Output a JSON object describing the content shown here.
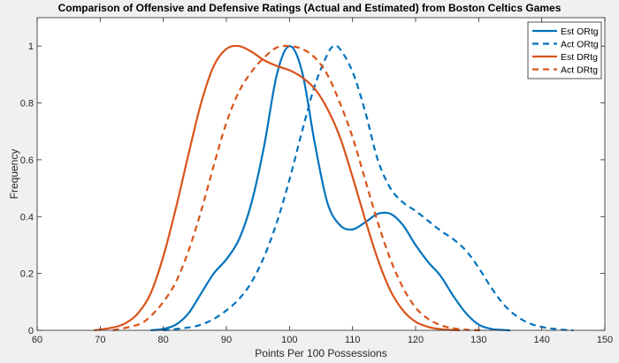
{
  "chart_data": {
    "type": "line",
    "title": "Comparison of Offensive and Defensive Ratings (Actual and Estimated) from Boston Celtics Games",
    "xlabel": "Points Per 100 Possessions",
    "ylabel": "Frequency",
    "xlim": [
      60,
      150
    ],
    "ylim": [
      0,
      1.1
    ],
    "xticks": [
      60,
      70,
      80,
      90,
      100,
      110,
      120,
      130,
      140,
      150
    ],
    "yticks": [
      0,
      0.2,
      0.4,
      0.6,
      0.8,
      1
    ],
    "ytick_labels": [
      "0",
      "0.2",
      "0.4",
      "0.6",
      "0.8",
      "1"
    ],
    "grid": false,
    "legend_position": "top-right",
    "series": [
      {
        "name": "Est ORtg",
        "color": "#0072BD",
        "style": "solid",
        "x": [
          78,
          80,
          82,
          84,
          86,
          88,
          90,
          92,
          94,
          96,
          98,
          100,
          102,
          104,
          106,
          108,
          110,
          112,
          114,
          116,
          118,
          120,
          122,
          124,
          126,
          128,
          130,
          132,
          134,
          135
        ],
        "y": [
          0,
          0.005,
          0.02,
          0.06,
          0.13,
          0.2,
          0.25,
          0.32,
          0.45,
          0.65,
          0.9,
          1.0,
          0.91,
          0.66,
          0.45,
          0.37,
          0.355,
          0.38,
          0.41,
          0.41,
          0.37,
          0.3,
          0.24,
          0.19,
          0.12,
          0.06,
          0.02,
          0.005,
          0.001,
          0
        ]
      },
      {
        "name": "Act ORtg",
        "color": "#0072BD",
        "style": "dashed",
        "x": [
          80,
          84,
          86,
          88,
          90,
          92,
          94,
          96,
          98,
          100,
          102,
          104,
          106,
          107,
          108,
          110,
          112,
          114,
          116,
          118,
          120,
          122,
          124,
          126,
          128,
          130,
          132,
          134,
          136,
          138,
          140,
          142,
          144,
          145
        ],
        "y": [
          0,
          0.01,
          0.02,
          0.04,
          0.07,
          0.11,
          0.17,
          0.26,
          0.38,
          0.53,
          0.7,
          0.86,
          0.97,
          1.0,
          0.99,
          0.91,
          0.77,
          0.6,
          0.5,
          0.45,
          0.42,
          0.385,
          0.35,
          0.32,
          0.28,
          0.22,
          0.15,
          0.09,
          0.05,
          0.025,
          0.012,
          0.005,
          0.001,
          0
        ]
      },
      {
        "name": "Est DRtg",
        "color": "#D95319",
        "style": "solid",
        "x": [
          69,
          72,
          74,
          76,
          78,
          80,
          82,
          84,
          86,
          88,
          90,
          92,
          94,
          96,
          98,
          100,
          102,
          104,
          106,
          108,
          110,
          112,
          114,
          116,
          118,
          120,
          122,
          124,
          126,
          127
        ],
        "y": [
          0,
          0.01,
          0.025,
          0.06,
          0.13,
          0.26,
          0.43,
          0.62,
          0.8,
          0.93,
          0.99,
          1.0,
          0.98,
          0.95,
          0.93,
          0.915,
          0.89,
          0.85,
          0.78,
          0.68,
          0.54,
          0.39,
          0.25,
          0.14,
          0.07,
          0.03,
          0.012,
          0.004,
          0.001,
          0
        ]
      },
      {
        "name": "Act DRtg",
        "color": "#D95319",
        "style": "dashed",
        "x": [
          72,
          76,
          78,
          80,
          82,
          84,
          86,
          88,
          90,
          92,
          94,
          96,
          98,
          100,
          102,
          104,
          106,
          108,
          110,
          112,
          114,
          116,
          118,
          120,
          122,
          124,
          126,
          128,
          130,
          131
        ],
        "y": [
          0,
          0.02,
          0.05,
          0.1,
          0.17,
          0.28,
          0.42,
          0.58,
          0.73,
          0.84,
          0.91,
          0.96,
          0.995,
          1.0,
          0.99,
          0.96,
          0.9,
          0.8,
          0.68,
          0.53,
          0.38,
          0.25,
          0.15,
          0.08,
          0.04,
          0.018,
          0.007,
          0.002,
          0.0005,
          0
        ]
      }
    ]
  }
}
